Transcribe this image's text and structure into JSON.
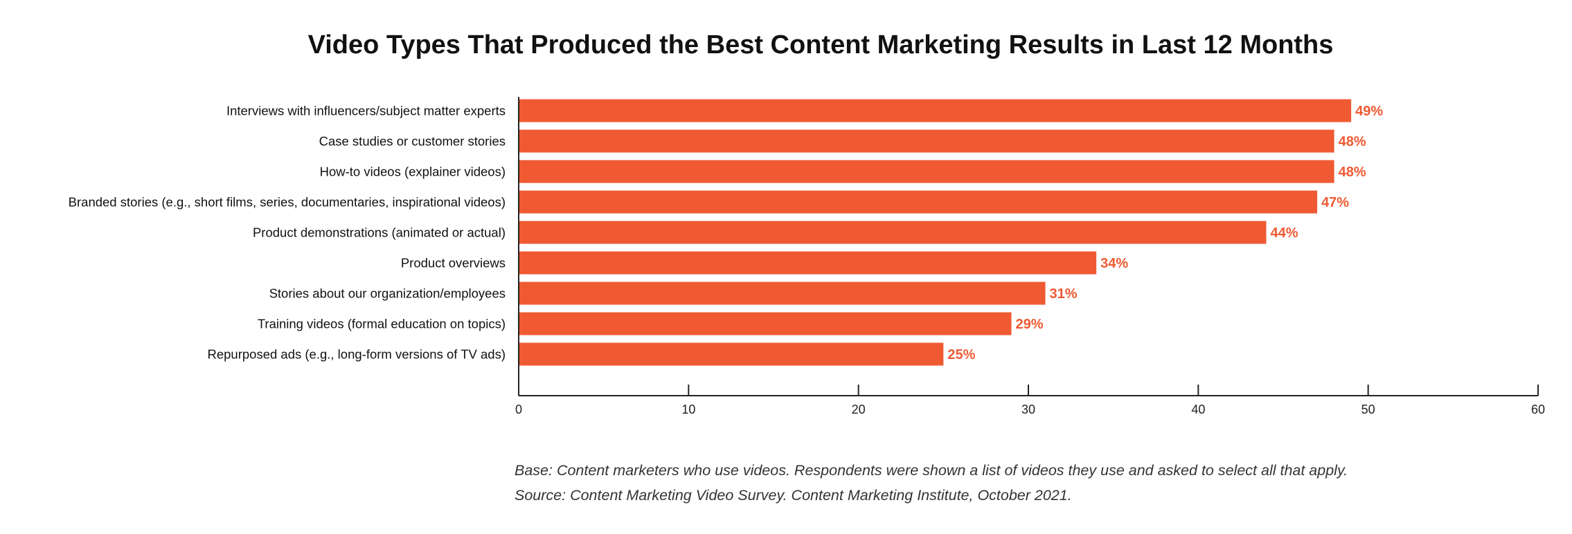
{
  "chart_data": {
    "type": "bar",
    "orientation": "horizontal",
    "title": "Video Types That Produced the Best Content Marketing Results in Last 12 Months",
    "categories": [
      "Interviews with influencers/subject matter experts",
      "Case studies or customer stories",
      "How-to videos (explainer videos)",
      "Branded stories (e.g., short films, series, documentaries, inspirational videos)",
      "Product demonstrations (animated or actual)",
      "Product overviews",
      "Stories about our organization/employees",
      "Training videos (formal education on topics)",
      "Repurposed ads (e.g., long-form versions of TV ads)"
    ],
    "values": [
      49,
      48,
      48,
      47,
      44,
      34,
      31,
      29,
      25
    ],
    "value_labels": [
      "49%",
      "48%",
      "48%",
      "47%",
      "44%",
      "34%",
      "31%",
      "29%",
      "25%"
    ],
    "xlim": [
      0,
      60
    ],
    "xticks": [
      0,
      10,
      20,
      30,
      40,
      50,
      60
    ],
    "xlabel": "",
    "ylabel": "",
    "grid": false,
    "legend": "none",
    "bar_color": "#EF5A32",
    "value_label_color": "#EF5A32"
  },
  "footnotes": {
    "base": "Base: Content marketers who use videos. Respondents were shown a list of videos they use and asked to select all that apply.",
    "source": "Source: Content Marketing Video Survey. Content Marketing Institute, October 2021."
  }
}
